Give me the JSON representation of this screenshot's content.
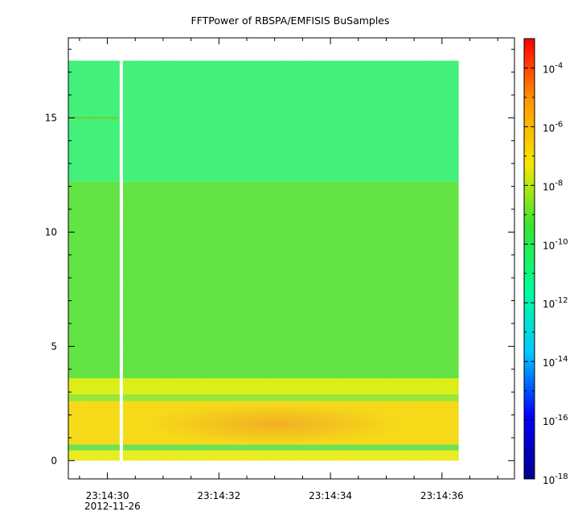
{
  "chart_data": {
    "type": "heatmap",
    "title": "FFTPower of RBSPA/EMFISIS  BuSamples",
    "xlabel": "",
    "ylabel": "",
    "x_axis": {
      "tick_labels": [
        "23:14:30",
        "23:14:32",
        "23:14:34",
        "23:14:36"
      ],
      "date_label": "2012-11-26",
      "range": [
        "23:14:29.3",
        "23:14:37.3"
      ]
    },
    "y_axis": {
      "ticks": [
        0,
        5,
        10,
        15
      ],
      "tick_labels": [
        "0",
        "5",
        "10",
        "15"
      ],
      "range": [
        -0.8,
        18.5
      ]
    },
    "data_extent": {
      "x": [
        "23:14:29.3",
        "23:14:36.3"
      ],
      "y": [
        0,
        17.5
      ]
    },
    "gap": {
      "x": "23:14:30.25"
    },
    "z_scale": "log",
    "colorbar": {
      "range": [
        1e-18,
        0.001
      ],
      "tick_labels": [
        {
          "base": "10",
          "exp": "-4"
        },
        {
          "base": "10",
          "exp": "-6"
        },
        {
          "base": "10",
          "exp": "-8"
        },
        {
          "base": "10",
          "exp": "-10"
        },
        {
          "base": "10",
          "exp": "-12"
        },
        {
          "base": "10",
          "exp": "-14"
        },
        {
          "base": "10",
          "exp": "-16"
        },
        {
          "base": "10",
          "exp": "-18"
        }
      ],
      "colormap": "rainbow",
      "colors": [
        "#00008b",
        "#0000ff",
        "#00c8ff",
        "#00ff9a",
        "#33e533",
        "#f5e800",
        "#ff9900",
        "#ff0000"
      ]
    },
    "bands": [
      {
        "y_range": [
          12.2,
          17.5
        ],
        "level": "1e-12",
        "color": "#33f07a"
      },
      {
        "y_range": [
          3.6,
          12.2
        ],
        "level": "1e-10",
        "color": "#55e23f"
      },
      {
        "y_range": [
          2.9,
          3.6
        ],
        "level": "1e-8",
        "color": "#d9ee10"
      },
      {
        "y_range": [
          2.6,
          2.9
        ],
        "level": "1e-10",
        "color": "#8ee632"
      },
      {
        "y_range": [
          0.7,
          2.6
        ],
        "level": "1e-7",
        "color": "#f5d810"
      },
      {
        "y_range": [
          0.45,
          0.7
        ],
        "level": "1e-10",
        "color": "#60e050"
      },
      {
        "y_range": [
          0,
          0.45
        ],
        "level": "1e-8",
        "color": "#e8ec18"
      }
    ],
    "features": [
      {
        "type": "line",
        "y": 15.0,
        "x_range": [
          "23:14:29.3",
          "23:14:30.2"
        ],
        "color": "#7acc20"
      },
      {
        "type": "peak",
        "x": "23:14:33",
        "y": 1.6,
        "level": "1e-6",
        "color": "#f09a20"
      }
    ]
  }
}
